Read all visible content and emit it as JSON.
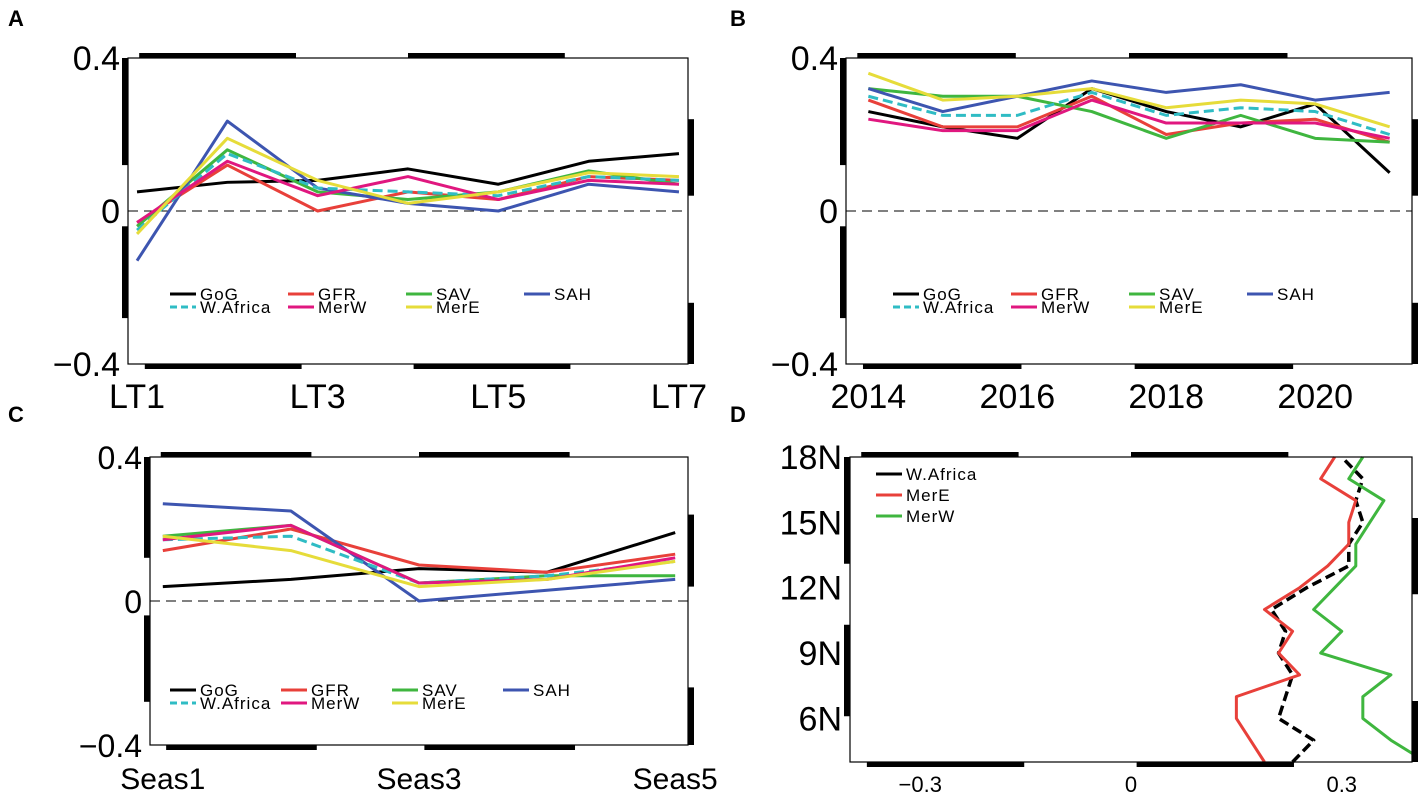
{
  "chart_data": [
    {
      "panel": "A",
      "type": "line",
      "categories": [
        "LT1",
        "LT2",
        "LT3",
        "LT4",
        "LT5",
        "LT6",
        "LT7"
      ],
      "x_tick_labels": [
        "LT1",
        "LT3",
        "LT5",
        "LT7"
      ],
      "ylim": [
        -0.4,
        0.4
      ],
      "y_tick_labels": [
        "0.4",
        "0",
        "-0.4"
      ],
      "zero_line": true,
      "legend_position": "lower-left",
      "series": [
        {
          "name": "GoG",
          "color": "#000000",
          "dash": "solid",
          "values": [
            0.05,
            0.075,
            0.08,
            0.11,
            0.07,
            0.13,
            0.15
          ]
        },
        {
          "name": "GFR",
          "color": "#e8403a",
          "dash": "solid",
          "values": [
            -0.03,
            0.12,
            0.0,
            0.05,
            0.03,
            0.09,
            0.08
          ]
        },
        {
          "name": "SAV",
          "color": "#3fb63f",
          "dash": "solid",
          "values": [
            -0.04,
            0.16,
            0.05,
            0.03,
            0.05,
            0.105,
            0.07
          ]
        },
        {
          "name": "SAH",
          "color": "#3d55b0",
          "dash": "solid",
          "values": [
            -0.13,
            0.235,
            0.06,
            0.02,
            0.0,
            0.07,
            0.05
          ]
        },
        {
          "name": "W.Africa",
          "color": "#2fbcc4",
          "dash": "dashed",
          "values": [
            -0.05,
            0.15,
            0.06,
            0.05,
            0.04,
            0.09,
            0.08
          ]
        },
        {
          "name": "MerW",
          "color": "#e0177f",
          "dash": "solid",
          "values": [
            -0.03,
            0.13,
            0.04,
            0.09,
            0.03,
            0.08,
            0.07
          ]
        },
        {
          "name": "MerE",
          "color": "#e6dc3a",
          "dash": "solid",
          "values": [
            -0.06,
            0.19,
            0.08,
            0.02,
            0.05,
            0.1,
            0.09
          ]
        }
      ]
    },
    {
      "panel": "B",
      "type": "line",
      "x": [
        2014,
        2015,
        2016,
        2017,
        2018,
        2019,
        2020,
        2021
      ],
      "x_tick_labels": [
        "2014",
        "2016",
        "2018",
        "2020"
      ],
      "ylim": [
        -0.4,
        0.4
      ],
      "y_tick_labels": [
        "0.4",
        "0",
        "-0.4"
      ],
      "zero_line": true,
      "legend_position": "lower-left",
      "series": [
        {
          "name": "GoG",
          "color": "#000000",
          "dash": "solid",
          "values": [
            0.26,
            0.22,
            0.19,
            0.32,
            0.26,
            0.22,
            0.28,
            0.1
          ]
        },
        {
          "name": "GFR",
          "color": "#e8403a",
          "dash": "solid",
          "values": [
            0.29,
            0.22,
            0.22,
            0.3,
            0.2,
            0.23,
            0.24,
            0.18
          ]
        },
        {
          "name": "SAV",
          "color": "#3fb63f",
          "dash": "solid",
          "values": [
            0.32,
            0.3,
            0.3,
            0.26,
            0.19,
            0.25,
            0.19,
            0.18
          ]
        },
        {
          "name": "SAH",
          "color": "#3d55b0",
          "dash": "solid",
          "values": [
            0.32,
            0.26,
            0.3,
            0.34,
            0.31,
            0.33,
            0.29,
            0.31
          ]
        },
        {
          "name": "W.Africa",
          "color": "#2fbcc4",
          "dash": "dashed",
          "values": [
            0.3,
            0.25,
            0.25,
            0.31,
            0.25,
            0.27,
            0.26,
            0.2
          ]
        },
        {
          "name": "MerW",
          "color": "#e0177f",
          "dash": "solid",
          "values": [
            0.24,
            0.21,
            0.21,
            0.29,
            0.23,
            0.23,
            0.23,
            0.19
          ]
        },
        {
          "name": "MerE",
          "color": "#e6dc3a",
          "dash": "solid",
          "values": [
            0.36,
            0.29,
            0.3,
            0.32,
            0.27,
            0.29,
            0.28,
            0.22
          ]
        }
      ]
    },
    {
      "panel": "C",
      "type": "line",
      "categories": [
        "Seas1",
        "Seas2",
        "Seas3",
        "Seas4",
        "Seas5"
      ],
      "x_tick_labels": [
        "Seas1",
        "Seas3",
        "Seas5"
      ],
      "ylim": [
        -0.4,
        0.4
      ],
      "y_tick_labels": [
        "0.4",
        "0",
        "-0.4"
      ],
      "zero_line": true,
      "legend_position": "lower-left",
      "series": [
        {
          "name": "GoG",
          "color": "#000000",
          "dash": "solid",
          "values": [
            0.04,
            0.06,
            0.09,
            0.08,
            0.19
          ]
        },
        {
          "name": "GFR",
          "color": "#e8403a",
          "dash": "solid",
          "values": [
            0.14,
            0.2,
            0.1,
            0.08,
            0.13
          ]
        },
        {
          "name": "SAV",
          "color": "#3fb63f",
          "dash": "solid",
          "values": [
            0.18,
            0.21,
            0.05,
            0.07,
            0.07
          ]
        },
        {
          "name": "SAH",
          "color": "#3d55b0",
          "dash": "solid",
          "values": [
            0.27,
            0.25,
            0.0,
            0.03,
            0.06
          ]
        },
        {
          "name": "W.Africa",
          "color": "#2fbcc4",
          "dash": "dashed",
          "values": [
            0.17,
            0.18,
            0.05,
            0.07,
            0.11
          ]
        },
        {
          "name": "MerW",
          "color": "#e0177f",
          "dash": "solid",
          "values": [
            0.17,
            0.21,
            0.05,
            0.06,
            0.12
          ]
        },
        {
          "name": "MerE",
          "color": "#e6dc3a",
          "dash": "solid",
          "values": [
            0.18,
            0.14,
            0.04,
            0.06,
            0.11
          ]
        }
      ]
    },
    {
      "panel": "D",
      "type": "line",
      "orientation": "vertical-profile",
      "y_latitudes": [
        4,
        5,
        6,
        7,
        8,
        9,
        10,
        11,
        12,
        13,
        14,
        15,
        16,
        17,
        18
      ],
      "y_tick_labels": [
        "18N",
        "15N",
        "12N",
        "9N",
        "6N"
      ],
      "ylim": [
        4,
        18
      ],
      "xlim": [
        -0.4,
        0.4
      ],
      "x_tick_labels": [
        "-0.3",
        "0",
        "0.3"
      ],
      "legend_position": "top-left",
      "series": [
        {
          "name": "W.Africa",
          "color": "#000000",
          "dash": "dashed",
          "values": [
            0.23,
            0.26,
            0.21,
            0.22,
            0.23,
            0.21,
            0.22,
            0.2,
            0.25,
            0.31,
            0.31,
            0.33,
            0.32,
            0.33,
            0.3
          ]
        },
        {
          "name": "MerE",
          "color": "#e8403a",
          "dash": "solid",
          "values": [
            0.19,
            0.17,
            0.15,
            0.15,
            0.24,
            0.21,
            0.23,
            0.19,
            0.24,
            0.28,
            0.31,
            0.31,
            0.32,
            0.27,
            0.29
          ]
        },
        {
          "name": "MerW",
          "color": "#3fb63f",
          "dash": "solid",
          "values": [
            0.42,
            0.37,
            0.33,
            0.33,
            0.37,
            0.27,
            0.3,
            0.26,
            0.29,
            0.32,
            0.32,
            0.34,
            0.36,
            0.31,
            0.33
          ]
        }
      ]
    }
  ]
}
